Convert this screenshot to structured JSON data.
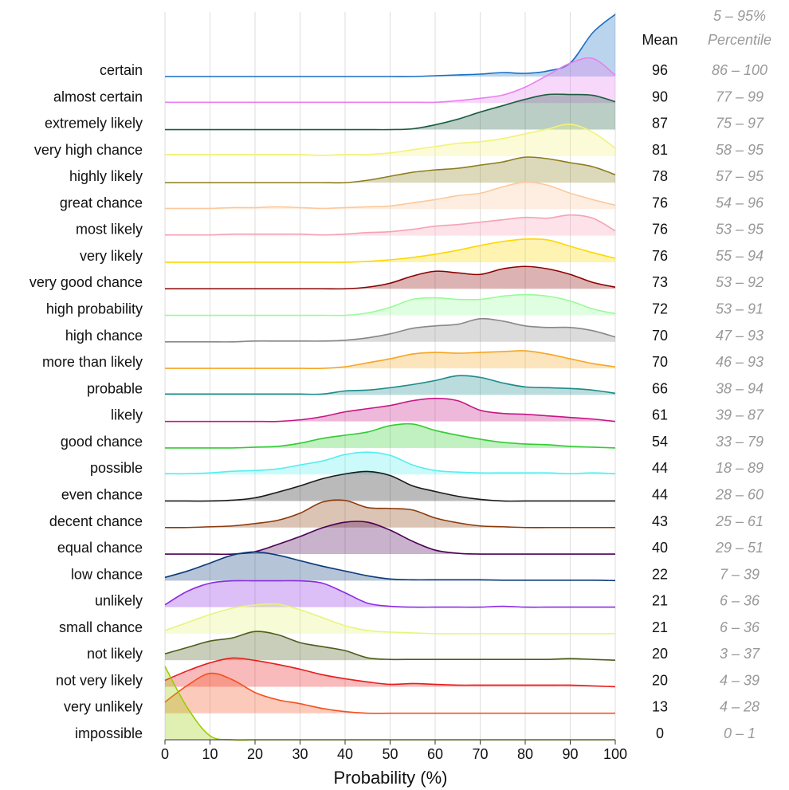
{
  "chart_data": {
    "type": "ridgeline",
    "xlabel": "Probability (%)",
    "xlim": [
      0,
      100
    ],
    "xticks": [
      0,
      10,
      20,
      30,
      40,
      50,
      60,
      70,
      80,
      90,
      100
    ],
    "grid": true,
    "mean_header": "Mean",
    "percentile_header": [
      "5 – 95%",
      "Percentile"
    ],
    "x": [
      0,
      5,
      10,
      15,
      20,
      25,
      30,
      35,
      40,
      45,
      50,
      55,
      60,
      65,
      70,
      75,
      80,
      85,
      90,
      95,
      100
    ],
    "series": [
      {
        "name": "certain",
        "color": "#1a6fc4",
        "mean": 96,
        "percentile": "86 – 100",
        "values": [
          0,
          0,
          0,
          0,
          0,
          0,
          0,
          0,
          0,
          0,
          0,
          0,
          1,
          2,
          3,
          5,
          4,
          7,
          17,
          55,
          78
        ]
      },
      {
        "name": "almost certain",
        "color": "#e97ff0",
        "mean": 90,
        "percentile": "77 – 99",
        "values": [
          1,
          1,
          1,
          1,
          1,
          1,
          1,
          1,
          1,
          1,
          1,
          1,
          1,
          3,
          6,
          10,
          20,
          35,
          50,
          56,
          35
        ]
      },
      {
        "name": "extremely likely",
        "color": "#1a5e3f",
        "mean": 87,
        "percentile": "75 – 97",
        "values": [
          0,
          0,
          0,
          0,
          0,
          0,
          0,
          0,
          0,
          0,
          0,
          1,
          6,
          13,
          22,
          30,
          38,
          44,
          44,
          43,
          35
        ]
      },
      {
        "name": "very high chance",
        "color": "#f2f27a",
        "mean": 81,
        "percentile": "58 – 95",
        "values": [
          2,
          2,
          2,
          2,
          2,
          2,
          2,
          1,
          2,
          2,
          4,
          8,
          12,
          16,
          18,
          22,
          28,
          34,
          40,
          30,
          10
        ]
      },
      {
        "name": "highly likely",
        "color": "#8b7d1a",
        "mean": 78,
        "percentile": "57 – 95",
        "values": [
          0,
          0,
          0,
          0,
          0,
          0,
          0,
          0,
          0,
          3,
          8,
          13,
          16,
          18,
          22,
          26,
          32,
          30,
          25,
          20,
          10
        ]
      },
      {
        "name": "great chance",
        "color": "#fcc89b",
        "mean": 76,
        "percentile": "54 – 96",
        "values": [
          1,
          1,
          1,
          2,
          2,
          3,
          2,
          1,
          2,
          3,
          4,
          8,
          12,
          17,
          20,
          28,
          34,
          30,
          20,
          12,
          5
        ]
      },
      {
        "name": "most likely",
        "color": "#f7a1b5",
        "mean": 76,
        "percentile": "53 – 95",
        "values": [
          1,
          1,
          1,
          2,
          2,
          2,
          2,
          1,
          2,
          4,
          5,
          8,
          12,
          14,
          17,
          20,
          23,
          22,
          26,
          22,
          6
        ]
      },
      {
        "name": "very likely",
        "color": "#ffd700",
        "mean": 76,
        "percentile": "55 – 94",
        "values": [
          0,
          0,
          0,
          0,
          0,
          0,
          0,
          0,
          0,
          1,
          3,
          6,
          10,
          15,
          21,
          26,
          29,
          28,
          20,
          12,
          5
        ]
      },
      {
        "name": "very good chance",
        "color": "#8b0000",
        "mean": 73,
        "percentile": "53 – 92",
        "values": [
          0,
          0,
          0,
          0,
          0,
          0,
          0,
          0,
          0,
          2,
          7,
          16,
          22,
          20,
          18,
          25,
          28,
          25,
          18,
          8,
          2
        ]
      },
      {
        "name": "high probability",
        "color": "#98fb98",
        "mean": 72,
        "percentile": "53 – 91",
        "values": [
          0,
          0,
          0,
          0,
          0,
          0,
          0,
          0,
          0,
          3,
          10,
          20,
          22,
          20,
          20,
          24,
          26,
          24,
          18,
          8,
          2
        ]
      },
      {
        "name": "high chance",
        "color": "#888888",
        "mean": 70,
        "percentile": "47 – 93",
        "values": [
          0,
          0,
          0,
          0,
          1,
          1,
          1,
          1,
          2,
          5,
          10,
          17,
          20,
          22,
          29,
          26,
          20,
          18,
          18,
          14,
          6
        ]
      },
      {
        "name": "more than likely",
        "color": "#f5a623",
        "mean": 70,
        "percentile": "46 – 93",
        "values": [
          0,
          0,
          0,
          0,
          0,
          0,
          0,
          0,
          2,
          7,
          12,
          18,
          20,
          19,
          20,
          21,
          22,
          18,
          12,
          6,
          2
        ]
      },
      {
        "name": "probable",
        "color": "#1a8a8a",
        "mean": 66,
        "percentile": "38 – 94",
        "values": [
          1,
          1,
          1,
          1,
          1,
          1,
          1,
          1,
          5,
          6,
          9,
          13,
          18,
          24,
          22,
          15,
          10,
          9,
          8,
          6,
          2
        ]
      },
      {
        "name": "likely",
        "color": "#c71585",
        "mean": 61,
        "percentile": "39 – 87",
        "values": [
          0,
          0,
          0,
          0,
          0,
          0,
          2,
          6,
          12,
          16,
          20,
          26,
          29,
          26,
          14,
          10,
          9,
          7,
          5,
          3,
          0
        ]
      },
      {
        "name": "good chance",
        "color": "#33cc33",
        "mean": 54,
        "percentile": "33 – 79",
        "values": [
          0,
          0,
          0,
          0,
          1,
          2,
          6,
          12,
          16,
          20,
          28,
          30,
          22,
          16,
          11,
          7,
          5,
          4,
          2,
          1,
          0
        ]
      },
      {
        "name": "possible",
        "color": "#55eeee",
        "mean": 44,
        "percentile": "18 – 89",
        "values": [
          1,
          1,
          2,
          4,
          5,
          7,
          12,
          17,
          25,
          28,
          24,
          12,
          5,
          3,
          2,
          2,
          2,
          2,
          1,
          2,
          1
        ]
      },
      {
        "name": "even chance",
        "color": "#1a1a1a",
        "mean": 44,
        "percentile": "28 – 60",
        "values": [
          0,
          0,
          0,
          1,
          4,
          11,
          19,
          28,
          34,
          37,
          32,
          19,
          12,
          6,
          2,
          0,
          0,
          0,
          0,
          0,
          0
        ]
      },
      {
        "name": "decent chance",
        "color": "#8b3a0b",
        "mean": 43,
        "percentile": "25 – 61",
        "values": [
          0,
          0,
          1,
          2,
          5,
          9,
          18,
          32,
          34,
          25,
          24,
          22,
          12,
          6,
          2,
          1,
          0,
          0,
          0,
          0,
          0
        ]
      },
      {
        "name": "equal chance",
        "color": "#4b0055",
        "mean": 40,
        "percentile": "29 – 51",
        "values": [
          0,
          0,
          0,
          0,
          3,
          12,
          22,
          33,
          40,
          40,
          30,
          16,
          5,
          1,
          0,
          0,
          0,
          0,
          0,
          0,
          0
        ]
      },
      {
        "name": "low chance",
        "color": "#0a3a7a",
        "mean": 22,
        "percentile": "7 – 39",
        "values": [
          4,
          12,
          22,
          32,
          36,
          32,
          25,
          18,
          12,
          6,
          2,
          1,
          1,
          1,
          1,
          0.5,
          0.5,
          0.5,
          0.5,
          0.5,
          0
        ]
      },
      {
        "name": "unlikely",
        "color": "#8a2be2",
        "mean": 21,
        "percentile": "6 – 36",
        "values": [
          3,
          20,
          30,
          33,
          33,
          33,
          33,
          30,
          18,
          5,
          1,
          0,
          0,
          0,
          0,
          1,
          0,
          0,
          0,
          0,
          0
        ]
      },
      {
        "name": "small chance",
        "color": "#e6f57a",
        "mean": 21,
        "percentile": "6 – 36",
        "values": [
          4,
          14,
          24,
          32,
          36,
          37,
          30,
          20,
          10,
          4,
          2,
          1,
          0,
          0,
          0,
          0,
          0,
          0,
          0,
          0,
          0
        ]
      },
      {
        "name": "not likely",
        "color": "#4a5e1a",
        "mean": 20,
        "percentile": "3 – 37",
        "values": [
          8,
          16,
          24,
          28,
          36,
          32,
          22,
          17,
          12,
          3,
          1,
          1,
          1,
          1,
          1,
          1,
          1,
          1,
          2,
          1,
          0
        ]
      },
      {
        "name": "not very likely",
        "color": "#e81c1c",
        "mean": 20,
        "percentile": "4 – 39",
        "values": [
          8,
          20,
          30,
          36,
          33,
          28,
          22,
          15,
          10,
          6,
          3,
          4,
          3,
          2,
          2,
          2,
          2,
          2,
          2,
          1,
          0
        ]
      },
      {
        "name": "very unlikely",
        "color": "#f4511e",
        "mean": 13,
        "percentile": "4 – 28",
        "values": [
          14,
          35,
          50,
          42,
          26,
          17,
          12,
          6,
          2,
          0,
          0,
          0,
          0,
          0,
          0,
          0,
          0,
          0,
          0,
          0,
          0
        ]
      },
      {
        "name": "impossible",
        "color": "#99cc00",
        "mean": 0,
        "percentile": "0 – 1",
        "values": [
          92,
          40,
          5,
          0,
          0,
          0,
          0,
          0,
          0,
          0,
          0,
          0,
          0,
          0,
          0,
          0,
          0,
          0,
          0,
          0,
          0
        ]
      }
    ]
  }
}
